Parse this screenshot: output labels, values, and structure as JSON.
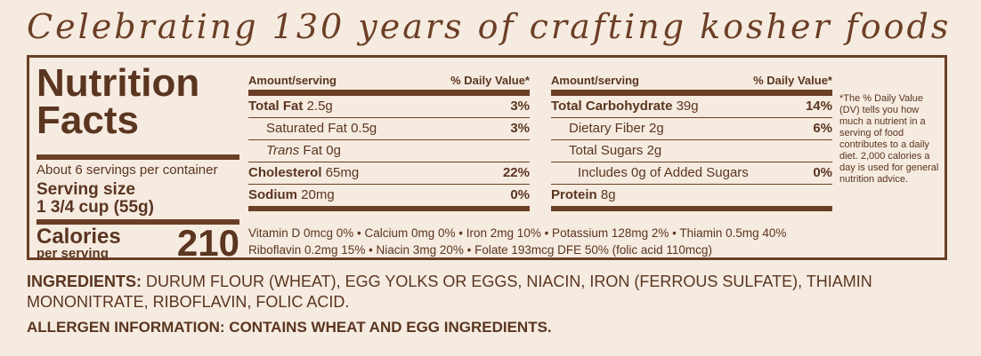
{
  "tagline": "Celebrating 130 years of crafting kosher foods",
  "nutrition": {
    "title_line1": "Nutrition",
    "title_line2": "Facts",
    "servings_per_container": "About 6 servings per container",
    "serving_size_label": "Serving size",
    "serving_size_value": "1 3/4 cup (55g)",
    "calories_label": "Calories",
    "calories_sub": "per serving",
    "calories_value": "210",
    "header_amount": "Amount/serving",
    "header_dv": "% Daily Value*",
    "left_rows": [
      {
        "name": "Total Fat",
        "amount": "2.5g",
        "dv": "3%"
      },
      {
        "name": "Saturated Fat",
        "amount": "0.5g",
        "dv": "3%"
      },
      {
        "name": "Trans",
        "name_rest": " Fat",
        "amount": "0g",
        "dv": ""
      },
      {
        "name": "Cholesterol",
        "amount": "65mg",
        "dv": "22%"
      },
      {
        "name": "Sodium",
        "amount": "20mg",
        "dv": "0%"
      }
    ],
    "right_rows": [
      {
        "name": "Total Carbohydrate",
        "amount": "39g",
        "dv": "14%"
      },
      {
        "name": "Dietary Fiber",
        "amount": "2g",
        "dv": "6%"
      },
      {
        "name": "Total Sugars",
        "amount": "2g",
        "dv": ""
      },
      {
        "name": "Includes 0g of Added Sugars",
        "amount": "",
        "dv": "0%"
      },
      {
        "name": "Protein",
        "amount": "8g",
        "dv": ""
      }
    ],
    "micro_line1": "Vitamin D 0mcg 0%  •  Calcium 0mg 0%  •  Iron 2mg 10%  •  Potassium 128mg 2%  •  Thiamin 0.5mg 40%",
    "micro_line2": "Riboflavin 0.2mg 15%  •  Niacin 3mg 20%  •  Folate 193mcg DFE 50% (folic acid 110mcg)",
    "footnote": "*The % Daily Value (DV) tells you how much a nutrient in a serving of food contributes to a daily diet. 2,000 calories a day is used for general nutrition advice."
  },
  "ingredients_label": "INGREDIENTS:",
  "ingredients_text": " DURUM FLOUR (WHEAT), EGG YOLKS OR EGGS, NIACIN, IRON (FERROUS SULFATE), THIAMIN MONONITRATE, RIBOFLAVIN, FOLIC ACID.",
  "allergen_label": "ALLERGEN INFORMATION:",
  "allergen_text": " CONTAINS WHEAT AND EGG INGREDIENTS."
}
